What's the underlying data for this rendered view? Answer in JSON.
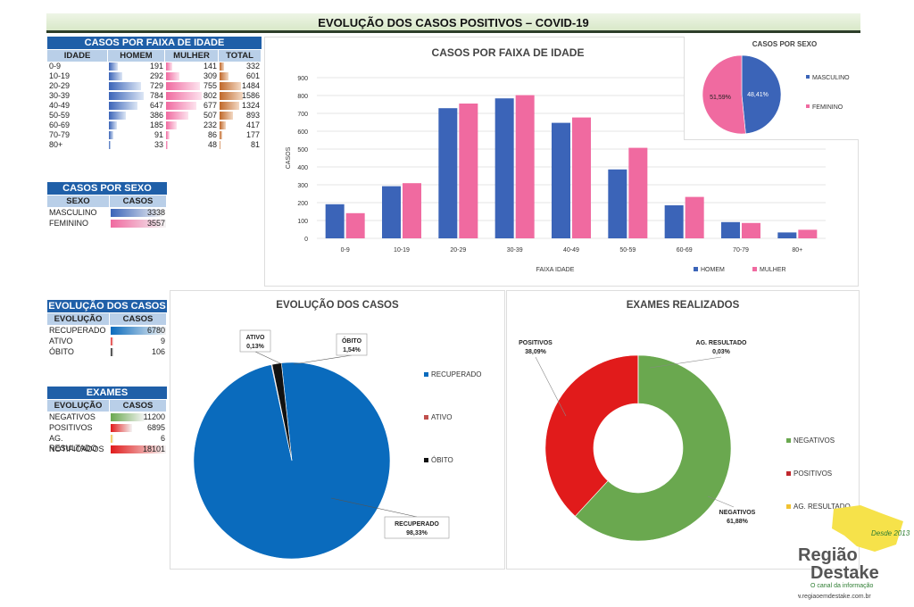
{
  "title": "EVOLUÇÃO DOS  CASOS POSITIVOS – COVID-19",
  "colors": {
    "homem": "#3b64b8",
    "mulher": "#f06aa0",
    "total": "#c0682a",
    "recuperado": "#0a6bbd",
    "ativo": "#c0504d",
    "obito": "#111111",
    "negativos": "#6aa84f",
    "positivos": "#e11b1b",
    "ag_resultado": "#f1c232"
  },
  "age_table": {
    "header": "CASOS POR FAIXA DE IDADE",
    "columns": [
      "IDADE",
      "HOMEM",
      "MULHER",
      "TOTAL"
    ],
    "rows": [
      {
        "idade": "0-9",
        "homem": "191",
        "mulher": "141",
        "total": "332"
      },
      {
        "idade": "10-19",
        "homem": "292",
        "mulher": "309",
        "total": "601"
      },
      {
        "idade": "20-29",
        "homem": "729",
        "mulher": "755",
        "total": "1484"
      },
      {
        "idade": "30-39",
        "homem": "784",
        "mulher": "802",
        "total": "1586"
      },
      {
        "idade": "40-49",
        "homem": "647",
        "mulher": "677",
        "total": "1324"
      },
      {
        "idade": "50-59",
        "homem": "386",
        "mulher": "507",
        "total": "893"
      },
      {
        "idade": "60-69",
        "homem": "185",
        "mulher": "232",
        "total": "417"
      },
      {
        "idade": "70-79",
        "homem": "91",
        "mulher": "86",
        "total": "177"
      },
      {
        "idade": "80+",
        "homem": "33",
        "mulher": "48",
        "total": "81"
      }
    ]
  },
  "sex_table": {
    "header": "CASOS POR SEXO",
    "columns": [
      "SEXO",
      "CASOS"
    ],
    "rows": [
      {
        "label": "MASCULINO",
        "value": "3338"
      },
      {
        "label": "FEMININO",
        "value": "3557"
      }
    ]
  },
  "evolucao_table": {
    "header": "EVOLUÇÃO DOS CASOS",
    "columns": [
      "EVOLUÇÃO",
      "CASOS"
    ],
    "rows": [
      {
        "label": "RECUPERADO",
        "value": "6780"
      },
      {
        "label": "ATIVO",
        "value": "9"
      },
      {
        "label": "ÓBITO",
        "value": "106"
      }
    ]
  },
  "exames_table": {
    "header": "EXAMES",
    "columns": [
      "EVOLUÇÃO",
      "CASOS"
    ],
    "rows": [
      {
        "label": "NEGATIVOS",
        "value": "11200"
      },
      {
        "label": "POSITIVOS",
        "value": "6895"
      },
      {
        "label": "AG. RESULTADO",
        "value": "6"
      },
      {
        "label": "NOTIFICADOS",
        "value": "18101"
      }
    ]
  },
  "chart_data": [
    {
      "type": "bar",
      "title": "CASOS POR FAIXA DE IDADE",
      "xlabel": "FAIXA IDADE",
      "ylabel": "CASOS",
      "ylim": [
        0,
        900
      ],
      "yticks": [
        "0",
        "100",
        "200",
        "300",
        "400",
        "500",
        "600",
        "700",
        "800",
        "900"
      ],
      "categories": [
        "0-9",
        "10-19",
        "20-29",
        "30-39",
        "40-49",
        "50-59",
        "60-69",
        "70-79",
        "80+"
      ],
      "series": [
        {
          "name": "HOMEM",
          "values": [
            191,
            292,
            729,
            784,
            647,
            386,
            185,
            91,
            33
          ]
        },
        {
          "name": "MULHER",
          "values": [
            141,
            309,
            755,
            802,
            677,
            507,
            232,
            86,
            48
          ]
        }
      ]
    },
    {
      "type": "pie",
      "title": "CASOS POR SEXO",
      "labels": [
        "MASCULINO",
        "FEMININO"
      ],
      "values": [
        48.41,
        51.59
      ],
      "data_labels": [
        "48,41%",
        "51,59%"
      ]
    },
    {
      "type": "pie",
      "title": "EVOLUÇÃO DOS CASOS",
      "labels": [
        "RECUPERADO",
        "ATIVO",
        "ÓBITO"
      ],
      "values": [
        98.33,
        0.13,
        1.54
      ],
      "data_labels": [
        "98,33%",
        "0,13%",
        "1,54%"
      ]
    },
    {
      "type": "pie",
      "title": "EXAMES REALIZADOS",
      "labels": [
        "NEGATIVOS",
        "POSITIVOS",
        "AG. RESULTADO"
      ],
      "values": [
        61.88,
        38.09,
        0.03
      ],
      "data_labels": [
        "61,88%",
        "38,09%",
        "0,03%"
      ]
    }
  ],
  "logo": {
    "name": "Região Destake",
    "tagline": "O canal da informação",
    "since": "Desde 2013",
    "url": "www.regiaoemdestake.com.br"
  }
}
